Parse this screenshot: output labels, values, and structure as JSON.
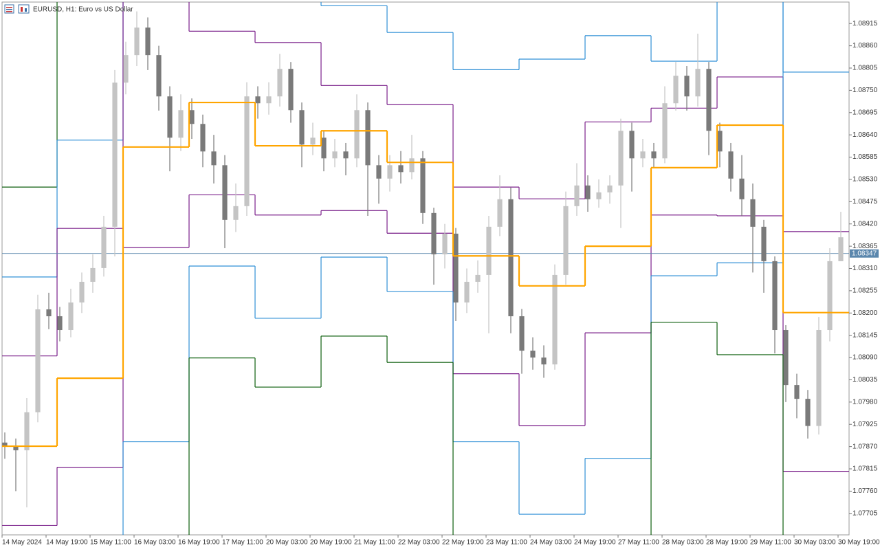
{
  "chart_data": {
    "type": "candlestick",
    "title": "EURUSD, H1:  Euro vs US Dollar",
    "x": [
      1,
      5,
      9,
      13,
      17,
      21,
      25,
      29,
      33,
      37,
      41,
      45,
      49,
      53,
      57,
      61,
      65,
      69,
      73,
      77,
      81,
      85,
      89,
      93,
      97,
      101,
      105,
      109,
      113,
      117,
      121,
      125,
      129,
      133,
      137,
      141,
      145,
      149,
      153,
      157,
      161,
      165,
      169,
      173,
      177,
      181,
      185,
      189,
      193,
      197,
      201,
      205,
      209,
      213,
      217,
      221,
      225,
      229,
      233,
      237,
      241,
      245,
      249,
      253,
      257,
      261,
      265,
      269,
      273,
      277,
      281,
      285,
      289,
      293,
      297,
      301,
      305
    ],
    "open": [
      1.0788,
      1.0787,
      1.07861,
      1.07955,
      1.08209,
      1.08192,
      1.08158,
      1.08226,
      1.08277,
      1.08311,
      1.08413,
      1.08769,
      1.08837,
      1.08905,
      1.08837,
      1.08735,
      1.08633,
      1.08701,
      1.08667,
      1.08599,
      1.08565,
      1.0843,
      1.08464,
      1.08735,
      1.08718,
      1.08735,
      1.08803,
      1.08701,
      1.08616,
      1.08633,
      1.08582,
      1.08599,
      1.08582,
      1.08701,
      1.08565,
      1.08532,
      1.08565,
      1.08548,
      1.08582,
      1.08447,
      1.08345,
      1.08396,
      1.08226,
      1.08277,
      1.08294,
      1.08413,
      1.08481,
      1.08192,
      1.08107,
      1.0809,
      1.08073,
      1.08294,
      1.08464,
      1.08515,
      1.08481,
      1.08498,
      1.08515,
      1.0865,
      1.08582,
      1.08599,
      1.08582,
      1.08718,
      1.08786,
      1.08735,
      1.08803,
      1.0865,
      1.08599,
      1.08532,
      1.08481,
      1.08413,
      1.08328,
      1.08158,
      1.08022,
      1.07988,
      1.07921,
      1.08158,
      1.08328
    ],
    "high": [
      1.07905,
      1.0789,
      1.0799,
      1.08245,
      1.0825,
      1.08215,
      1.0826,
      1.083,
      1.08345,
      1.0844,
      1.088,
      1.0887,
      1.08945,
      1.0893,
      1.0886,
      1.0876,
      1.0874,
      1.0873,
      1.0869,
      1.0864,
      1.0859,
      1.0852,
      1.0877,
      1.0876,
      1.0877,
      1.0884,
      1.0882,
      1.0872,
      1.0867,
      1.0865,
      1.0863,
      1.0862,
      1.0874,
      1.0872,
      1.0859,
      1.0859,
      1.086,
      1.0864,
      1.086,
      1.0846,
      1.0842,
      1.0841,
      1.0831,
      1.0833,
      1.0844,
      1.0854,
      1.0851,
      1.0821,
      1.0814,
      1.0812,
      1.0832,
      1.085,
      1.0857,
      1.0854,
      1.0853,
      1.0854,
      1.0868,
      1.0867,
      1.0863,
      1.0862,
      1.0876,
      1.0882,
      1.0881,
      1.0889,
      1.0882,
      1.0867,
      1.0862,
      1.0859,
      1.0852,
      1.0843,
      1.0834,
      1.0817,
      1.0805,
      1.0801,
      1.0819,
      1.0836,
      1.0845
    ],
    "low": [
      1.0784,
      1.0776,
      1.0772,
      1.0793,
      1.0816,
      1.0813,
      1.0814,
      1.082,
      1.0825,
      1.0829,
      1.0834,
      1.0874,
      1.0881,
      1.088,
      1.087,
      1.0855,
      1.086,
      1.0863,
      1.0856,
      1.0852,
      1.0836,
      1.084,
      1.0844,
      1.0868,
      1.0869,
      1.0871,
      1.0867,
      1.0856,
      1.0859,
      1.0855,
      1.0856,
      1.0854,
      1.0856,
      1.0844,
      1.0847,
      1.085,
      1.0852,
      1.0853,
      1.0842,
      1.0827,
      1.0831,
      1.0818,
      1.082,
      1.0825,
      1.0815,
      1.0839,
      1.0815,
      1.0805,
      1.0806,
      1.0804,
      1.0806,
      1.0827,
      1.0844,
      1.0845,
      1.0846,
      1.0847,
      1.0841,
      1.085,
      1.0856,
      1.0856,
      1.0857,
      1.087,
      1.087,
      1.0871,
      1.0859,
      1.0856,
      1.085,
      1.0844,
      1.083,
      1.0825,
      1.081,
      1.0798,
      1.0794,
      1.0789,
      1.079,
      1.0813,
      1.0833
    ],
    "close": [
      1.0787,
      1.07861,
      1.07955,
      1.08209,
      1.08192,
      1.08158,
      1.08226,
      1.08277,
      1.08311,
      1.08413,
      1.08769,
      1.08837,
      1.08905,
      1.08837,
      1.08735,
      1.08633,
      1.08701,
      1.08667,
      1.08599,
      1.08565,
      1.0843,
      1.08464,
      1.08735,
      1.08718,
      1.08735,
      1.08803,
      1.08701,
      1.08616,
      1.08633,
      1.08582,
      1.08599,
      1.08582,
      1.08701,
      1.08565,
      1.08532,
      1.08565,
      1.08548,
      1.08582,
      1.08447,
      1.08345,
      1.08396,
      1.08226,
      1.08277,
      1.08294,
      1.08413,
      1.08481,
      1.08192,
      1.08107,
      1.0809,
      1.08073,
      1.08294,
      1.08464,
      1.08515,
      1.08481,
      1.08498,
      1.08515,
      1.0865,
      1.08582,
      1.08599,
      1.08582,
      1.08718,
      1.08786,
      1.08735,
      1.08803,
      1.0865,
      1.08599,
      1.08532,
      1.08481,
      1.08413,
      1.08328,
      1.08158,
      1.08022,
      1.07988,
      1.07921,
      1.08158,
      1.08328,
      1.08387
    ],
    "up_color": "#c4c4c4",
    "down_color": "#7a7a7a",
    "level_bounds": [
      0,
      20,
      44,
      68,
      92,
      116,
      140,
      164,
      188,
      212,
      236,
      260,
      284,
      308
    ],
    "pivot": {
      "color": "#ffa500",
      "values": [
        1.07871,
        1.08039,
        1.0861,
        1.0872,
        1.08613,
        1.0865,
        1.08572,
        1.08341,
        1.08267,
        1.08365,
        1.08559,
        1.08664,
        1.08201
      ]
    },
    "levels": [
      {
        "color": "#0b5e0b",
        "values": [
          1.08511,
          null,
          null,
          null,
          null,
          null,
          null,
          null,
          null,
          null,
          null,
          null,
          null
        ]
      },
      {
        "color": "#2f8fd6",
        "values": [
          1.08289,
          1.08627,
          null,
          null,
          null,
          1.08959,
          1.08893,
          1.08801,
          1.08827,
          1.08885,
          1.08822,
          null,
          1.08795
        ]
      },
      {
        "color": "#7a1f8a",
        "values": [
          1.08094,
          1.08409,
          null,
          1.08896,
          1.08868,
          1.08762,
          1.08715,
          1.08511,
          1.08482,
          1.08672,
          1.08706,
          1.08783,
          1.08401
        ]
      },
      {
        "color": "#7a1f8a",
        "values": [
          1.07675,
          1.07819,
          1.08362,
          1.08492,
          1.08442,
          1.08453,
          1.08397,
          1.0805,
          1.07922,
          1.08151,
          1.08442,
          1.0844,
          1.07809
        ]
      },
      {
        "color": "#2f8fd6",
        "values": [
          null,
          null,
          1.07882,
          1.08316,
          1.08187,
          1.08338,
          1.08253,
          1.07882,
          1.07703,
          1.07841,
          1.08292,
          1.08324,
          null
        ]
      },
      {
        "color": "#0b5e0b",
        "values": [
          null,
          null,
          null,
          1.08089,
          1.08017,
          1.08143,
          1.08078,
          null,
          null,
          null,
          1.08177,
          1.08097,
          null
        ]
      }
    ],
    "current_price": 1.08347,
    "current_price_color": "#5b87ad",
    "xlim": [
      0,
      308
    ],
    "ylim": [
      1.07652,
      1.08968
    ],
    "yticks": [
      1.08915,
      {
        "value": 1.0886,
        "label": "1.08860"
      },
      1.08805,
      {
        "value": 1.0875,
        "label": "1.08750"
      },
      1.08695,
      {
        "value": 1.0864,
        "label": "1.08640"
      },
      1.08585,
      {
        "value": 1.0853,
        "label": "1.08530"
      },
      1.08475,
      {
        "value": 1.0842,
        "label": "1.08420"
      },
      1.08365,
      {
        "value": 1.0831,
        "label": "1.08310"
      },
      1.08255,
      {
        "value": 1.082,
        "label": "1.08200"
      },
      1.08145,
      {
        "value": 1.0809,
        "label": "1.08090"
      },
      1.08035,
      {
        "value": 1.0798,
        "label": "1.07980"
      },
      1.07925,
      {
        "value": 1.0787,
        "label": "1.07870"
      },
      1.07815,
      {
        "value": 1.0776,
        "label": "1.07760"
      },
      1.07705
    ],
    "xticks": [
      {
        "value": 0,
        "label": "14 May 2024"
      },
      {
        "value": 16,
        "label": "14 May 19:00"
      },
      {
        "value": 32,
        "label": "15 May 11:00"
      },
      {
        "value": 48,
        "label": "16 May 03:00"
      },
      {
        "value": 64,
        "label": "16 May 19:00"
      },
      {
        "value": 80,
        "label": "17 May 11:00"
      },
      {
        "value": 96,
        "label": "20 May 03:00"
      },
      {
        "value": 112,
        "label": "20 May 19:00"
      },
      {
        "value": 128,
        "label": "21 May 11:00"
      },
      {
        "value": 144,
        "label": "22 May 03:00"
      },
      {
        "value": 160,
        "label": "22 May 19:00"
      },
      {
        "value": 176,
        "label": "23 May 11:00"
      },
      {
        "value": 192,
        "label": "24 May 03:00"
      },
      {
        "value": 208,
        "label": "24 May 19:00"
      },
      {
        "value": 224,
        "label": "27 May 11:00"
      },
      {
        "value": 240,
        "label": "28 May 03:00"
      },
      {
        "value": 256,
        "label": "28 May 19:00"
      },
      {
        "value": 272,
        "label": "29 May 11:00"
      },
      {
        "value": 288,
        "label": "30 May 03:00"
      },
      {
        "value": 304,
        "label": "30 May 19:00"
      }
    ]
  }
}
